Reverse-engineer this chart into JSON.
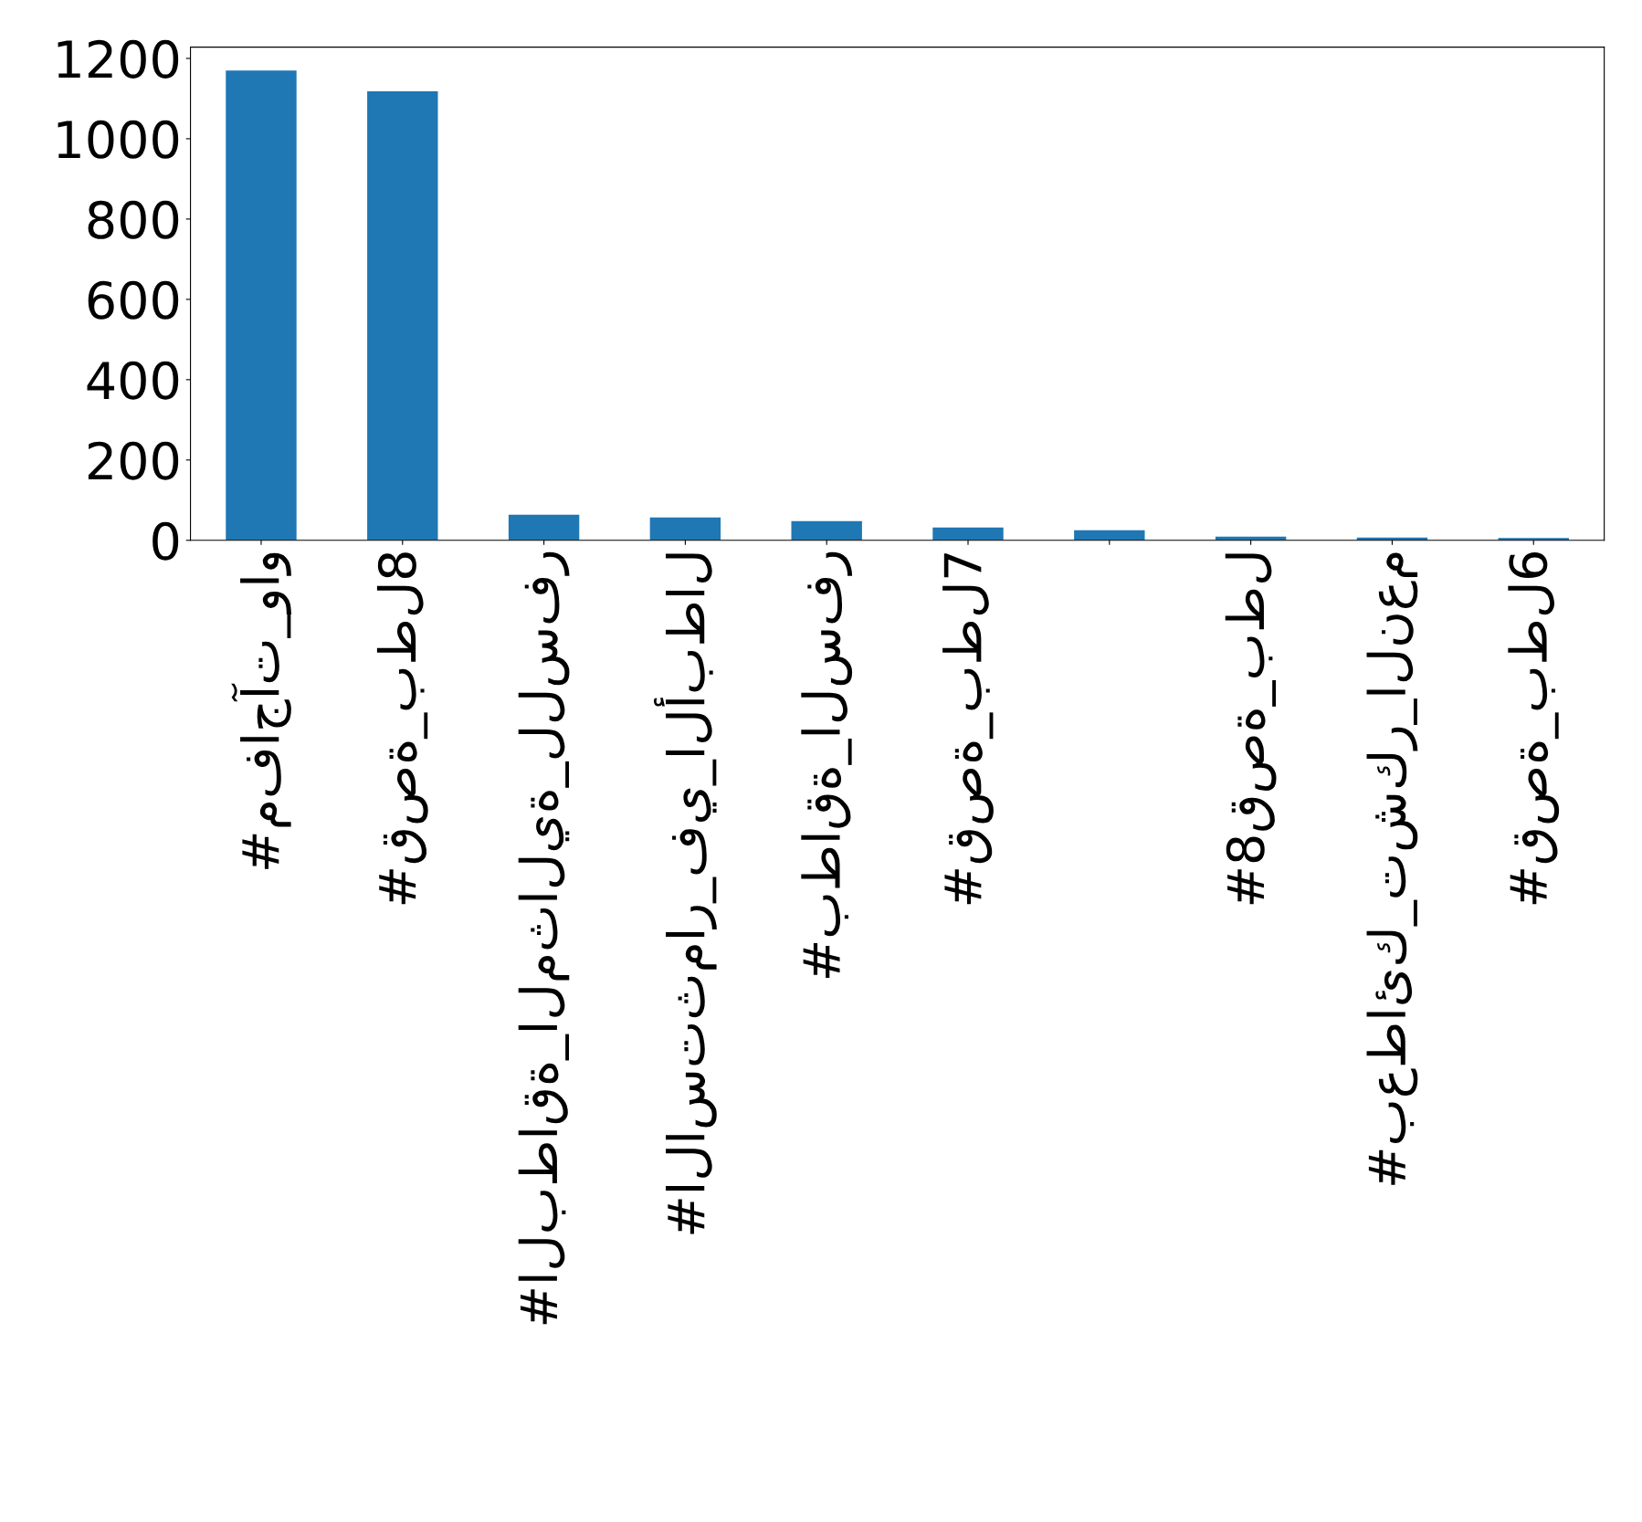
{
  "chart_data": {
    "type": "bar",
    "categories": [
      "#مفاجآت_واو",
      "#قصة_بطل8",
      "#البطاقة_المثالية_للسفر",
      "#الاستثمار_في_الأبطال",
      "#بطاقة_السفر",
      "#قصة_بطل7",
      null,
      "#8قصة_بطل",
      "#بعطائك_تشكر_النعم",
      "#قصة_بطل6"
    ],
    "values": [
      1170,
      1118,
      64,
      57,
      48,
      32,
      25,
      9,
      7,
      6
    ],
    "color": "#1f77b4",
    "ylim": [
      0,
      1228
    ],
    "yticks": [
      0,
      200,
      400,
      600,
      800,
      1000,
      1200
    ],
    "grid": false
  }
}
